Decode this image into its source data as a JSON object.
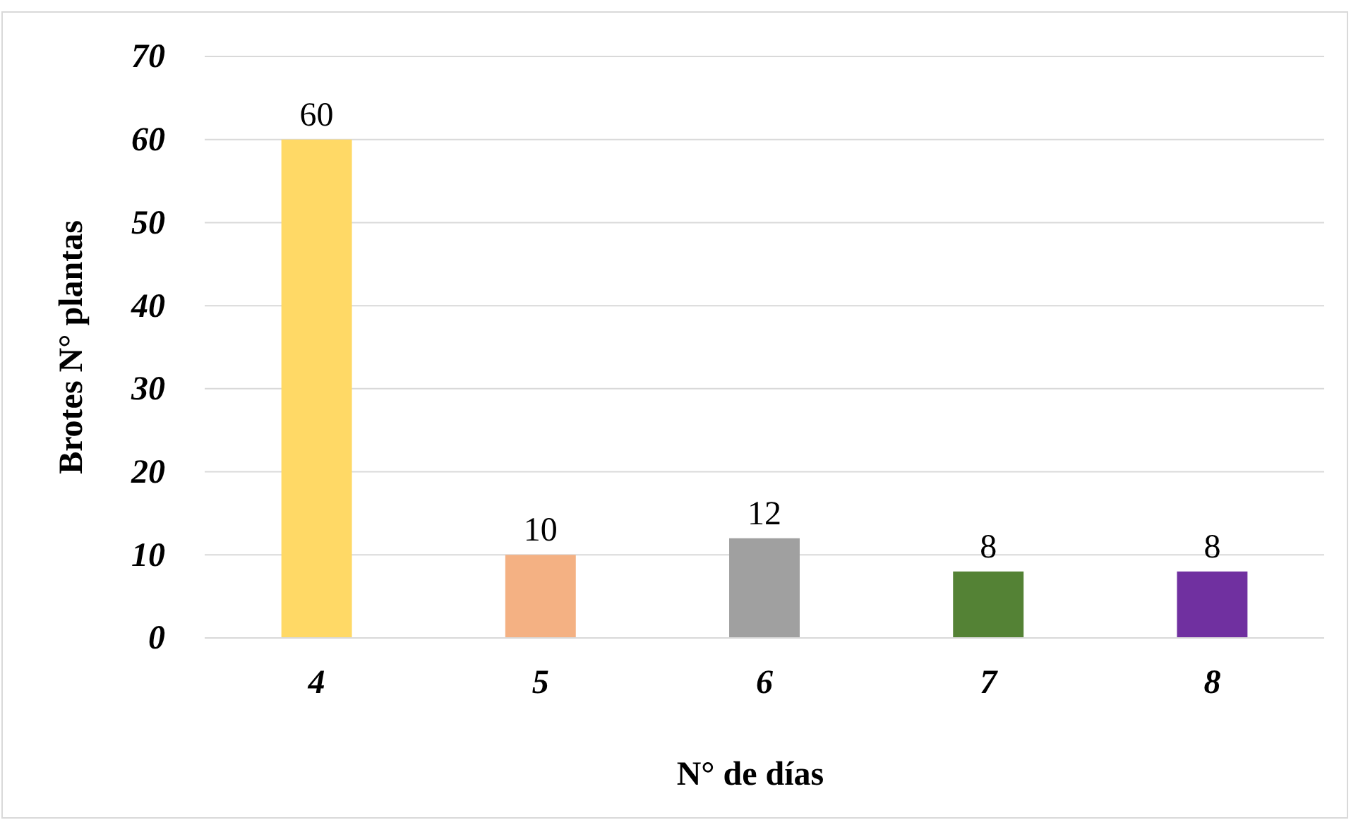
{
  "chart_data": {
    "type": "bar",
    "xlabel": "N° de días",
    "ylabel": "Brotes N° plantas",
    "categories": [
      "4",
      "5",
      "6",
      "7",
      "8"
    ],
    "values": [
      60,
      10,
      12,
      8,
      8
    ],
    "colors": [
      "#ffd966",
      "#f4b183",
      "#a0a0a0",
      "#548235",
      "#7030a0"
    ],
    "ylim": [
      0,
      70
    ],
    "yticks": [
      0,
      10,
      20,
      30,
      40,
      50,
      60,
      70
    ],
    "grid": "y",
    "data_labels": true
  }
}
